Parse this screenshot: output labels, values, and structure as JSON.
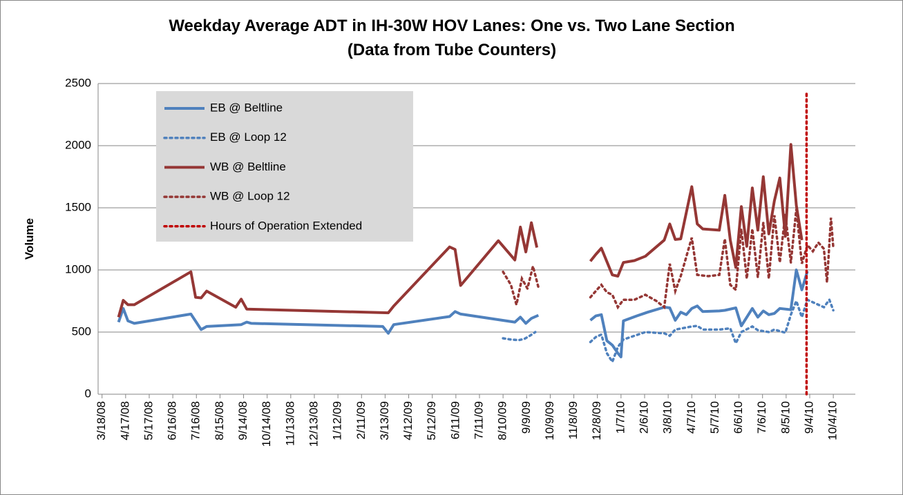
{
  "chart_data": {
    "type": "line",
    "title": "Weekday Average ADT in IH-30W HOV Lanes: One vs. Two Lane Section",
    "subtitle": "(Data from Tube Counters)",
    "ylabel": "Volume",
    "xlim": [
      "2008-03-13",
      "2010-11-01"
    ],
    "xticks": [
      {
        "value": "2008-03-18",
        "label": "3/18/08"
      },
      {
        "value": "2008-04-17",
        "label": "4/17/08"
      },
      {
        "value": "2008-05-17",
        "label": "5/17/08"
      },
      {
        "value": "2008-06-16",
        "label": "6/16/08"
      },
      {
        "value": "2008-07-16",
        "label": "7/16/08"
      },
      {
        "value": "2008-08-15",
        "label": "8/15/08"
      },
      {
        "value": "2008-09-14",
        "label": "9/14/08"
      },
      {
        "value": "2008-10-14",
        "label": "10/14/08"
      },
      {
        "value": "2008-11-13",
        "label": "11/13/08"
      },
      {
        "value": "2008-12-13",
        "label": "12/13/08"
      },
      {
        "value": "2009-01-12",
        "label": "1/12/09"
      },
      {
        "value": "2009-02-11",
        "label": "2/11/09"
      },
      {
        "value": "2009-03-13",
        "label": "3/13/09"
      },
      {
        "value": "2009-04-12",
        "label": "4/12/09"
      },
      {
        "value": "2009-05-12",
        "label": "5/12/09"
      },
      {
        "value": "2009-06-11",
        "label": "6/11/09"
      },
      {
        "value": "2009-07-11",
        "label": "7/11/09"
      },
      {
        "value": "2009-08-10",
        "label": "8/10/09"
      },
      {
        "value": "2009-09-09",
        "label": "9/9/09"
      },
      {
        "value": "2009-10-09",
        "label": "10/9/09"
      },
      {
        "value": "2009-11-08",
        "label": "11/8/09"
      },
      {
        "value": "2009-12-08",
        "label": "12/8/09"
      },
      {
        "value": "2010-01-07",
        "label": "1/7/10"
      },
      {
        "value": "2010-02-06",
        "label": "2/6/10"
      },
      {
        "value": "2010-03-08",
        "label": "3/8/10"
      },
      {
        "value": "2010-04-07",
        "label": "4/7/10"
      },
      {
        "value": "2010-05-07",
        "label": "5/7/10"
      },
      {
        "value": "2010-06-06",
        "label": "6/6/10"
      },
      {
        "value": "2010-07-06",
        "label": "7/6/10"
      },
      {
        "value": "2010-08-05",
        "label": "8/5/10"
      },
      {
        "value": "2010-09-04",
        "label": "9/4/10"
      },
      {
        "value": "2010-10-04",
        "label": "10/4/10"
      }
    ],
    "ylim": [
      0,
      2500
    ],
    "yticks": [
      0,
      500,
      1000,
      1500,
      2000,
      2500
    ],
    "grid": true,
    "legend": "upper left",
    "series": [
      {
        "name": "EB @ Beltline",
        "color": "#4f81bd",
        "style": "solid",
        "x": [
          "2008-04-08",
          "2008-04-14",
          "2008-04-20",
          "2008-04-28",
          "2008-07-09",
          "2008-07-22",
          "2008-07-29",
          "2008-09-11",
          "2008-09-18",
          "2008-09-24",
          "2009-03-10",
          "2009-03-17",
          "2009-03-24",
          "2009-06-03",
          "2009-06-10",
          "2009-06-17",
          "2009-08-25",
          "2009-09-01",
          "2009-09-08",
          "2009-09-15",
          "2009-09-24",
          "2009-10-30",
          "2009-11-29",
          "2009-12-06",
          "2009-12-13",
          "2009-12-20",
          "2009-12-27",
          "2010-01-03",
          "2010-01-07",
          "2010-01-10",
          "2010-01-27",
          "2010-02-10",
          "2010-03-03",
          "2010-03-10",
          "2010-03-17",
          "2010-03-24",
          "2010-03-31",
          "2010-04-07",
          "2010-04-14",
          "2010-04-21",
          "2010-05-12",
          "2010-05-19",
          "2010-06-02",
          "2010-06-09",
          "2010-06-23",
          "2010-06-30",
          "2010-07-07",
          "2010-07-14",
          "2010-07-21",
          "2010-07-28",
          "2010-08-11",
          "2010-08-18",
          "2010-08-25",
          "2010-09-01"
        ],
        "values": [
          580,
          690,
          590,
          570,
          645,
          520,
          545,
          560,
          580,
          570,
          545,
          490,
          560,
          625,
          665,
          645,
          580,
          620,
          570,
          610,
          635,
          null,
          595,
          630,
          640,
          430,
          395,
          330,
          300,
          590,
          630,
          660,
          700,
          695,
          595,
          660,
          640,
          690,
          710,
          665,
          670,
          675,
          695,
          550,
          690,
          620,
          670,
          640,
          650,
          690,
          680,
          1000,
          840,
          990
        ]
      },
      {
        "name": "EB @ Loop 12",
        "color": "#4f81bd",
        "style": "dotted",
        "x": [
          "2009-08-10",
          "2009-08-20",
          "2009-08-30",
          "2009-09-06",
          "2009-09-13",
          "2009-09-20",
          "2009-10-30",
          "2009-11-29",
          "2009-12-06",
          "2009-12-13",
          "2009-12-20",
          "2009-12-27",
          "2010-01-03",
          "2010-01-10",
          "2010-01-24",
          "2010-02-07",
          "2010-03-03",
          "2010-03-10",
          "2010-03-17",
          "2010-04-07",
          "2010-04-14",
          "2010-04-21",
          "2010-05-12",
          "2010-05-26",
          "2010-06-02",
          "2010-06-09",
          "2010-06-23",
          "2010-06-30",
          "2010-07-14",
          "2010-07-21",
          "2010-08-04",
          "2010-08-11",
          "2010-08-18",
          "2010-08-25",
          "2010-09-01",
          "2010-09-08",
          "2010-09-22",
          "2010-09-29",
          "2010-10-04"
        ],
        "values": [
          450,
          440,
          435,
          445,
          470,
          500,
          null,
          420,
          460,
          480,
          330,
          260,
          380,
          440,
          470,
          500,
          490,
          470,
          520,
          545,
          550,
          520,
          520,
          530,
          410,
          500,
          545,
          515,
          500,
          520,
          495,
          640,
          750,
          620,
          760,
          740,
          700,
          760,
          675
        ]
      },
      {
        "name": "WB @ Beltline",
        "color": "#953735",
        "style": "solid",
        "x": [
          "2008-04-08",
          "2008-04-14",
          "2008-04-20",
          "2008-04-28",
          "2008-07-09",
          "2008-07-15",
          "2008-07-22",
          "2008-07-29",
          "2008-09-04",
          "2008-09-11",
          "2008-09-18",
          "2009-03-17",
          "2009-03-24",
          "2009-06-03",
          "2009-06-10",
          "2009-06-17",
          "2009-08-04",
          "2009-08-25",
          "2009-09-01",
          "2009-09-08",
          "2009-09-15",
          "2009-09-22",
          "2009-10-30",
          "2009-11-29",
          "2009-12-06",
          "2009-12-13",
          "2009-12-27",
          "2010-01-03",
          "2010-01-10",
          "2010-01-24",
          "2010-02-07",
          "2010-03-03",
          "2010-03-10",
          "2010-03-17",
          "2010-03-24",
          "2010-04-07",
          "2010-04-14",
          "2010-04-21",
          "2010-05-12",
          "2010-05-19",
          "2010-05-26",
          "2010-06-02",
          "2010-06-09",
          "2010-06-16",
          "2010-06-23",
          "2010-06-30",
          "2010-07-07",
          "2010-07-14",
          "2010-07-21",
          "2010-07-28",
          "2010-08-04",
          "2010-08-11",
          "2010-08-18",
          "2010-08-25"
        ],
        "values": [
          620,
          755,
          720,
          720,
          985,
          780,
          775,
          830,
          700,
          765,
          685,
          655,
          710,
          1185,
          1165,
          875,
          1235,
          1080,
          1345,
          1145,
          1380,
          1180,
          null,
          1070,
          1125,
          1175,
          960,
          950,
          1060,
          1075,
          1110,
          1240,
          1370,
          1245,
          1250,
          1670,
          1370,
          1330,
          1320,
          1600,
          1240,
          1020,
          1510,
          1190,
          1660,
          1320,
          1750,
          1290,
          1555,
          1740,
          1270,
          2010,
          1520,
          1240
        ]
      },
      {
        "name": "WB @ Loop 12",
        "color": "#953735",
        "style": "dotted",
        "x": [
          "2009-08-10",
          "2009-08-20",
          "2009-08-27",
          "2009-09-03",
          "2009-09-10",
          "2009-09-17",
          "2009-09-24",
          "2009-10-30",
          "2009-11-29",
          "2009-12-06",
          "2009-12-13",
          "2009-12-20",
          "2009-12-27",
          "2010-01-03",
          "2010-01-10",
          "2010-01-24",
          "2010-02-07",
          "2010-02-21",
          "2010-03-03",
          "2010-03-10",
          "2010-03-17",
          "2010-03-24",
          "2010-04-07",
          "2010-04-14",
          "2010-04-28",
          "2010-05-12",
          "2010-05-19",
          "2010-05-26",
          "2010-06-02",
          "2010-06-09",
          "2010-06-16",
          "2010-06-23",
          "2010-06-30",
          "2010-07-07",
          "2010-07-14",
          "2010-07-21",
          "2010-07-28",
          "2010-08-04",
          "2010-08-11",
          "2010-08-18",
          "2010-08-25",
          "2010-09-01",
          "2010-09-08",
          "2010-09-15",
          "2010-09-22",
          "2010-09-26",
          "2010-10-01",
          "2010-10-04"
        ],
        "values": [
          985,
          880,
          720,
          930,
          850,
          1030,
          860,
          null,
          780,
          830,
          880,
          820,
          800,
          700,
          760,
          760,
          800,
          750,
          700,
          1050,
          830,
          950,
          1260,
          960,
          950,
          960,
          1250,
          880,
          840,
          1330,
          930,
          1330,
          940,
          1380,
          930,
          1440,
          1060,
          1450,
          1060,
          1490,
          1050,
          1200,
          1150,
          1220,
          1170,
          900,
          1420,
          1180
        ]
      },
      {
        "name": "Hours of Operation Extended",
        "color": "#c00000",
        "style": "dotted",
        "x": [
          "2010-08-31",
          "2010-08-31"
        ],
        "values": [
          0,
          2430
        ]
      }
    ]
  }
}
